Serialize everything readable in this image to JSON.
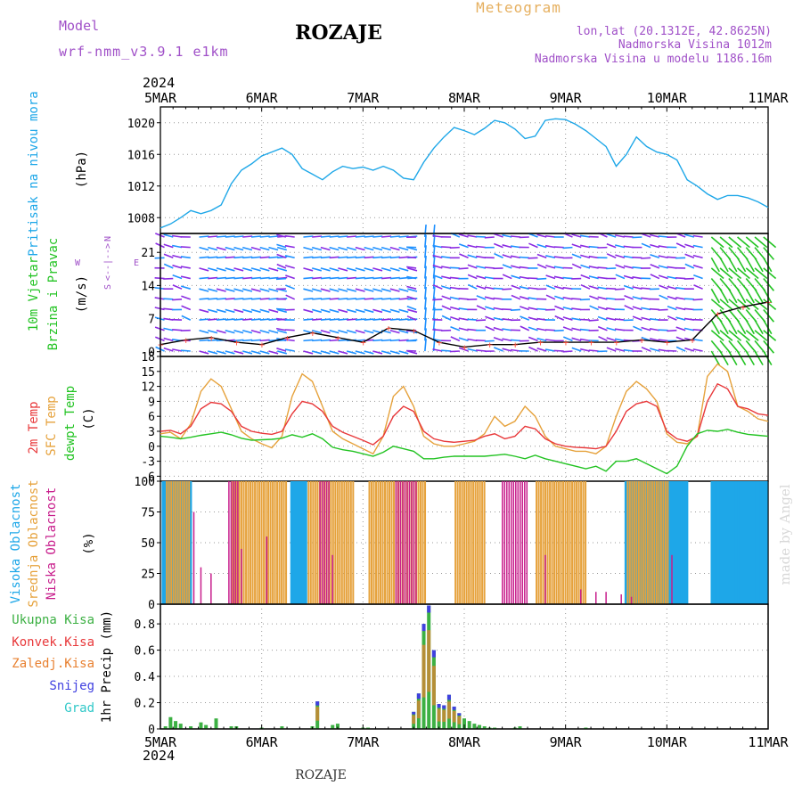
{
  "header": {
    "title": "ROZAJE",
    "product": "Meteogram",
    "model_label": "Model",
    "model_name": "wrf-nmm_v3.9.1 e1km",
    "location": "lon,lat (20.1312E, 42.8625N)",
    "elevation": "Nadmorska Visina 1012m",
    "model_elevation": "Nadmorska Visina u modelu 1186.16m",
    "footer_title": "ROZAJE",
    "credit": "made by Angel"
  },
  "colors": {
    "pressure": "#1ea7e8",
    "temp2m": "#e8383a",
    "sfc_temp": "#e6a23c",
    "dewpoint": "#22c322",
    "high_cloud": "#1ea7e8",
    "mid_cloud": "#e6a23c",
    "low_cloud": "#c81e8c",
    "total_precip": "#3cb043",
    "conv_precip": "#e8383a",
    "frozen_precip": "#e88030",
    "snow": "#4040e0",
    "graupel": "#30c8c8",
    "wind_calm": "#8a2be2",
    "wind_mid": "#1e90ff",
    "wind_strong": "#22c322"
  },
  "time_axis": {
    "year": "2024",
    "ticks": [
      "5MAR",
      "6MAR",
      "7MAR",
      "8MAR",
      "9MAR",
      "10MAR",
      "11MAR"
    ]
  },
  "panels": {
    "pressure": {
      "ylabel_name": "Pritisak na nivou mora",
      "ylabel_unit": "(hPa)",
      "ticks": [
        "1008",
        "1012",
        "1016",
        "1020"
      ]
    },
    "wind": {
      "ylabel_name": "10m Vjetar",
      "ylabel_desc": "Brzina i Pravac",
      "ylabel_unit": "(m/s)",
      "ticks": [
        "0",
        "7",
        "14",
        "21"
      ],
      "compass": {
        "n": "N",
        "s": "S",
        "e": "E",
        "w": "W",
        "arrow": "<--|-->"
      }
    },
    "temperature": {
      "ylabel_2m": "2m Temp",
      "ylabel_sfc": "SFC Temp",
      "ylabel_dew": "dewpt Temp",
      "ylabel_unit": "(C)",
      "ticks": [
        "-6",
        "-3",
        "0",
        "3",
        "6",
        "9",
        "12",
        "15",
        "18"
      ]
    },
    "clouds": {
      "ylabel_high": "Visoka Oblacnost",
      "ylabel_mid": "Srednja Oblacnost",
      "ylabel_low": "Niska Oblacnost",
      "ylabel_unit": "(%)",
      "ticks": [
        "0",
        "25",
        "50",
        "75",
        "100"
      ]
    },
    "precip": {
      "ylabel": "1hr Precip (mm)",
      "ticks": [
        "0",
        "0.2",
        "0.4",
        "0.6",
        "0.8"
      ],
      "legend": [
        "Ukupna Kisa",
        "Konvek.Kisa",
        "Zaledj.Kisa",
        "Snijeg",
        "Grad"
      ]
    }
  },
  "chart_data": [
    {
      "type": "line",
      "name": "pressure",
      "x_unit": "days since 5MAR 00UTC",
      "ylim": [
        1006,
        1022
      ],
      "x": [
        0,
        0.1,
        0.2,
        0.3,
        0.4,
        0.5,
        0.6,
        0.7,
        0.8,
        0.9,
        1.0,
        1.1,
        1.2,
        1.3,
        1.4,
        1.5,
        1.6,
        1.7,
        1.8,
        1.9,
        2.0,
        2.1,
        2.2,
        2.3,
        2.4,
        2.5,
        2.6,
        2.7,
        2.8,
        2.9,
        3.0,
        3.1,
        3.2,
        3.3,
        3.4,
        3.5,
        3.6,
        3.7,
        3.8,
        3.9,
        4.0,
        4.1,
        4.2,
        4.3,
        4.4,
        4.5,
        4.6,
        4.7,
        4.8,
        4.9,
        5.0,
        5.1,
        5.2,
        5.3,
        5.4,
        5.5,
        5.6,
        5.7,
        5.8,
        5.9,
        6.0
      ],
      "y": [
        1006.7,
        1007.2,
        1008.0,
        1008.9,
        1008.5,
        1008.9,
        1009.6,
        1012.3,
        1014.0,
        1014.8,
        1015.8,
        1016.3,
        1016.8,
        1016.0,
        1014.2,
        1013.5,
        1012.8,
        1013.8,
        1014.5,
        1014.2,
        1014.4,
        1014.0,
        1014.5,
        1014.0,
        1013.0,
        1012.8,
        1015.0,
        1016.8,
        1018.2,
        1019.4,
        1019.0,
        1018.5,
        1019.3,
        1020.3,
        1020.0,
        1019.2,
        1018.0,
        1018.3,
        1020.3,
        1020.5,
        1020.4,
        1019.8,
        1019.0,
        1018.0,
        1017.0,
        1014.5,
        1016.0,
        1018.2,
        1017.0,
        1016.3,
        1016.0,
        1015.3,
        1012.8,
        1012.0,
        1011.0,
        1010.3,
        1010.8,
        1010.8,
        1010.5,
        1010.0,
        1009.3
      ]
    },
    {
      "type": "line",
      "name": "temperature",
      "x_unit": "days since 5MAR 00UTC",
      "ylim": [
        -7,
        18
      ],
      "x": [
        0,
        0.1,
        0.2,
        0.3,
        0.4,
        0.5,
        0.6,
        0.7,
        0.8,
        0.9,
        1.0,
        1.1,
        1.2,
        1.3,
        1.4,
        1.5,
        1.6,
        1.7,
        1.8,
        1.9,
        2.0,
        2.1,
        2.2,
        2.3,
        2.4,
        2.5,
        2.6,
        2.7,
        2.8,
        2.9,
        3.0,
        3.1,
        3.2,
        3.3,
        3.4,
        3.5,
        3.6,
        3.7,
        3.8,
        3.9,
        4.0,
        4.1,
        4.2,
        4.3,
        4.4,
        4.5,
        4.6,
        4.7,
        4.8,
        4.9,
        5.0,
        5.1,
        5.2,
        5.3,
        5.4,
        5.5,
        5.6,
        5.7,
        5.8,
        5.9,
        6.0
      ],
      "series": [
        {
          "name": "2m Temp",
          "values": [
            3.0,
            3.2,
            2.5,
            4.0,
            7.5,
            8.8,
            8.5,
            7.0,
            4.0,
            3.0,
            2.6,
            2.4,
            3.0,
            6.5,
            9.0,
            8.5,
            7.0,
            4.0,
            2.8,
            2.0,
            1.2,
            0.3,
            2.0,
            6.0,
            8.0,
            7.0,
            3.0,
            1.5,
            1.0,
            0.8,
            1.0,
            1.2,
            2.0,
            2.5,
            1.5,
            2.0,
            4.0,
            3.5,
            1.5,
            0.5,
            0.0,
            -0.2,
            -0.3,
            -0.5,
            0.0,
            3.0,
            7.0,
            8.5,
            9.0,
            8.0,
            3.0,
            1.5,
            1.0,
            2.0,
            9.0,
            12.5,
            11.5,
            8.0,
            7.5,
            6.5,
            6.2
          ]
        },
        {
          "name": "SFC Temp",
          "values": [
            2.5,
            2.8,
            1.5,
            4.5,
            11.0,
            13.5,
            12.0,
            7.5,
            3.0,
            1.5,
            0.5,
            -0.3,
            2.0,
            10.0,
            14.5,
            13.0,
            8.0,
            3.0,
            1.5,
            0.5,
            -0.5,
            -1.5,
            2.0,
            10.0,
            12.0,
            8.0,
            2.0,
            0.5,
            0.0,
            0.0,
            0.5,
            1.0,
            2.5,
            6.0,
            4.0,
            5.0,
            8.0,
            6.0,
            2.0,
            0.0,
            -0.5,
            -1.0,
            -1.0,
            -1.5,
            0.0,
            6.0,
            11.0,
            13.0,
            11.5,
            9.0,
            2.5,
            0.8,
            0.5,
            2.0,
            14.0,
            16.5,
            15.0,
            8.0,
            7.0,
            5.5,
            5.0
          ]
        },
        {
          "name": "dewpt Temp",
          "values": [
            2.0,
            1.8,
            1.5,
            1.8,
            2.2,
            2.5,
            2.8,
            2.3,
            1.6,
            1.2,
            1.3,
            1.4,
            1.6,
            2.3,
            1.8,
            2.5,
            1.5,
            -0.2,
            -0.7,
            -1.0,
            -1.5,
            -2.0,
            -1.2,
            0.0,
            -0.5,
            -1.0,
            -2.5,
            -2.5,
            -2.2,
            -2.0,
            -2.0,
            -2.0,
            -2.0,
            -1.8,
            -1.6,
            -2.0,
            -2.5,
            -1.8,
            -2.5,
            -3.0,
            -3.5,
            -4.0,
            -4.5,
            -4.0,
            -5.0,
            -3.0,
            -3.0,
            -2.5,
            -3.5,
            -4.5,
            -5.5,
            -4.0,
            0.0,
            2.5,
            3.2,
            3.0,
            3.4,
            2.8,
            2.4,
            2.2,
            2.0
          ]
        }
      ]
    },
    {
      "type": "line",
      "name": "wind_speed",
      "x_unit": "days since 5MAR 00UTC",
      "ylim": [
        -1,
        25
      ],
      "x": [
        0,
        0.25,
        0.5,
        0.75,
        1.0,
        1.25,
        1.5,
        1.75,
        2.0,
        2.25,
        2.5,
        2.75,
        3.0,
        3.25,
        3.5,
        3.75,
        4.0,
        4.25,
        4.5,
        4.75,
        5.0,
        5.25,
        5.5,
        5.75,
        6.0
      ],
      "values": [
        1.5,
        2.5,
        3.0,
        2.0,
        1.5,
        3.0,
        4.0,
        3.0,
        2.0,
        5.0,
        4.5,
        2.0,
        1.0,
        1.5,
        1.5,
        2.0,
        2.0,
        2.0,
        2.0,
        2.5,
        2.0,
        2.5,
        8.0,
        9.5,
        10.5
      ]
    },
    {
      "type": "bar",
      "name": "clouds",
      "x_unit": "days since 5MAR 00UTC",
      "ylim": [
        0,
        100
      ],
      "series": [
        {
          "name": "Visoka Oblacnost",
          "ranges": [
            [
              0.03,
              0.3
            ],
            [
              1.3,
              1.45
            ],
            [
              4.6,
              5.2
            ],
            [
              5.45,
              6.0
            ]
          ]
        },
        {
          "name": "Srednja Oblacnost",
          "ranges": [
            [
              0.05,
              0.28
            ],
            [
              0.7,
              1.25
            ],
            [
              1.45,
              1.9
            ],
            [
              2.05,
              2.6
            ],
            [
              2.9,
              3.2
            ],
            [
              3.7,
              4.2
            ],
            [
              4.6,
              5.0
            ]
          ]
        },
        {
          "name": "Niska Oblacnost",
          "ranges": [
            [
              0.65,
              0.75
            ],
            [
              1.55,
              1.65
            ],
            [
              2.3,
              2.5
            ],
            [
              3.35,
              3.6
            ]
          ]
        }
      ]
    },
    {
      "type": "bar",
      "name": "precip",
      "x_unit": "days since 5MAR 00UTC",
      "ylim": [
        0,
        0.95
      ],
      "x": [
        0.05,
        0.1,
        0.15,
        0.2,
        0.3,
        0.4,
        0.45,
        0.55,
        0.7,
        0.75,
        1.0,
        1.2,
        1.5,
        1.55,
        1.7,
        1.75,
        2.0,
        2.05,
        2.5,
        2.55,
        2.6,
        2.65,
        2.7,
        2.75,
        2.8,
        2.85,
        2.9,
        2.95,
        3.0,
        3.05,
        3.1,
        3.15,
        3.2,
        3.25,
        3.3,
        3.5,
        3.55,
        4.2
      ],
      "values": [
        0.02,
        0.09,
        0.06,
        0.04,
        0.02,
        0.05,
        0.03,
        0.08,
        0.02,
        0.02,
        0.01,
        0.02,
        0.02,
        0.21,
        0.03,
        0.04,
        0.01,
        0.01,
        0.13,
        0.27,
        0.8,
        0.94,
        0.6,
        0.19,
        0.18,
        0.26,
        0.17,
        0.12,
        0.08,
        0.06,
        0.04,
        0.03,
        0.02,
        0.01,
        0.01,
        0.01,
        0.02,
        0.01
      ]
    }
  ]
}
